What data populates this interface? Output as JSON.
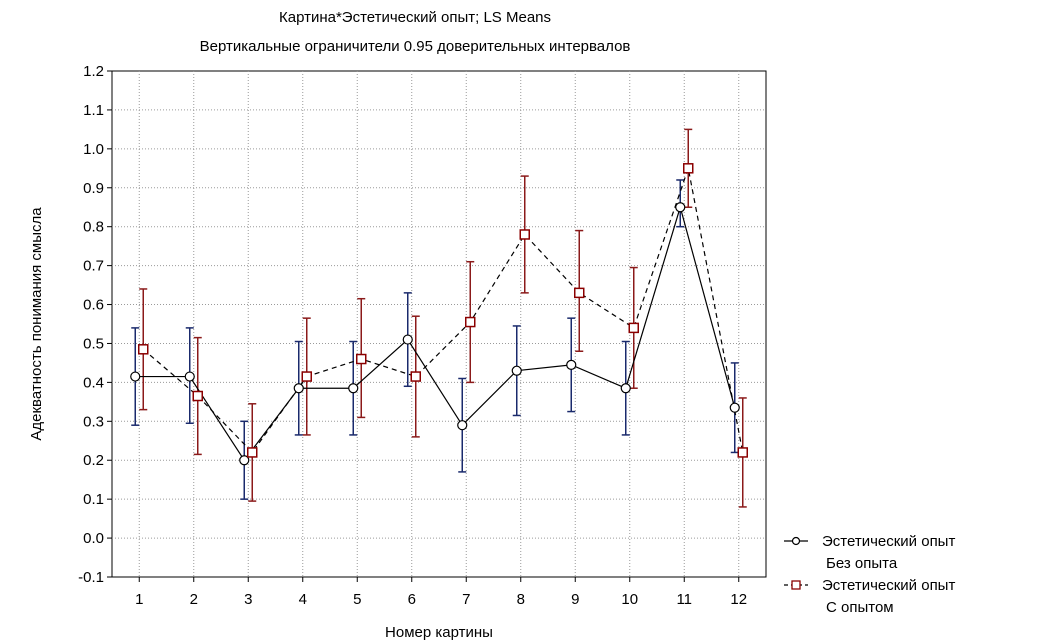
{
  "chart_data": {
    "type": "line",
    "title": "Картина*Эстетический опыт; LS Means",
    "subtitle": "Вертикальные ограничители 0.95 доверительных интервалов",
    "xlabel": "Номер картины",
    "ylabel": "Адекватность понимания смысла",
    "categories": [
      "1",
      "2",
      "3",
      "4",
      "5",
      "6",
      "7",
      "8",
      "9",
      "10",
      "11",
      "12"
    ],
    "ylim": [
      -0.1,
      1.2
    ],
    "yticks": [
      "-0.1",
      "0.0",
      "0.1",
      "0.2",
      "0.3",
      "0.4",
      "0.5",
      "0.6",
      "0.7",
      "0.8",
      "0.9",
      "1.0",
      "1.1",
      "1.2"
    ],
    "grid": true,
    "legend_position": "bottom-right",
    "series": [
      {
        "legend": [
          "Эстетический опыт",
          "Без опыта"
        ],
        "marker": "circle",
        "line_style": "solid",
        "color": "#000000",
        "error_color": "#1a2a6c",
        "values": [
          0.415,
          0.415,
          0.2,
          0.385,
          0.385,
          0.51,
          0.29,
          0.43,
          0.445,
          0.385,
          0.85,
          0.335
        ],
        "ci_low": [
          0.29,
          0.295,
          0.1,
          0.265,
          0.265,
          0.39,
          0.17,
          0.315,
          0.325,
          0.265,
          0.8,
          0.22
        ],
        "ci_high": [
          0.54,
          0.54,
          0.3,
          0.505,
          0.505,
          0.63,
          0.41,
          0.545,
          0.565,
          0.505,
          0.92,
          0.45
        ]
      },
      {
        "legend": [
          "Эстетический опыт",
          "С опытом"
        ],
        "marker": "square",
        "line_style": "dashed",
        "color": "#000000",
        "marker_color": "#8b0000",
        "error_color": "#8b1a1a",
        "values": [
          0.485,
          0.365,
          0.22,
          0.415,
          0.46,
          0.415,
          0.555,
          0.78,
          0.63,
          0.54,
          0.95,
          0.22
        ],
        "ci_low": [
          0.33,
          0.215,
          0.095,
          0.265,
          0.31,
          0.26,
          0.4,
          0.63,
          0.48,
          0.385,
          0.85,
          0.08
        ],
        "ci_high": [
          0.64,
          0.515,
          0.345,
          0.565,
          0.615,
          0.57,
          0.71,
          0.93,
          0.79,
          0.695,
          1.05,
          0.36
        ]
      }
    ]
  }
}
